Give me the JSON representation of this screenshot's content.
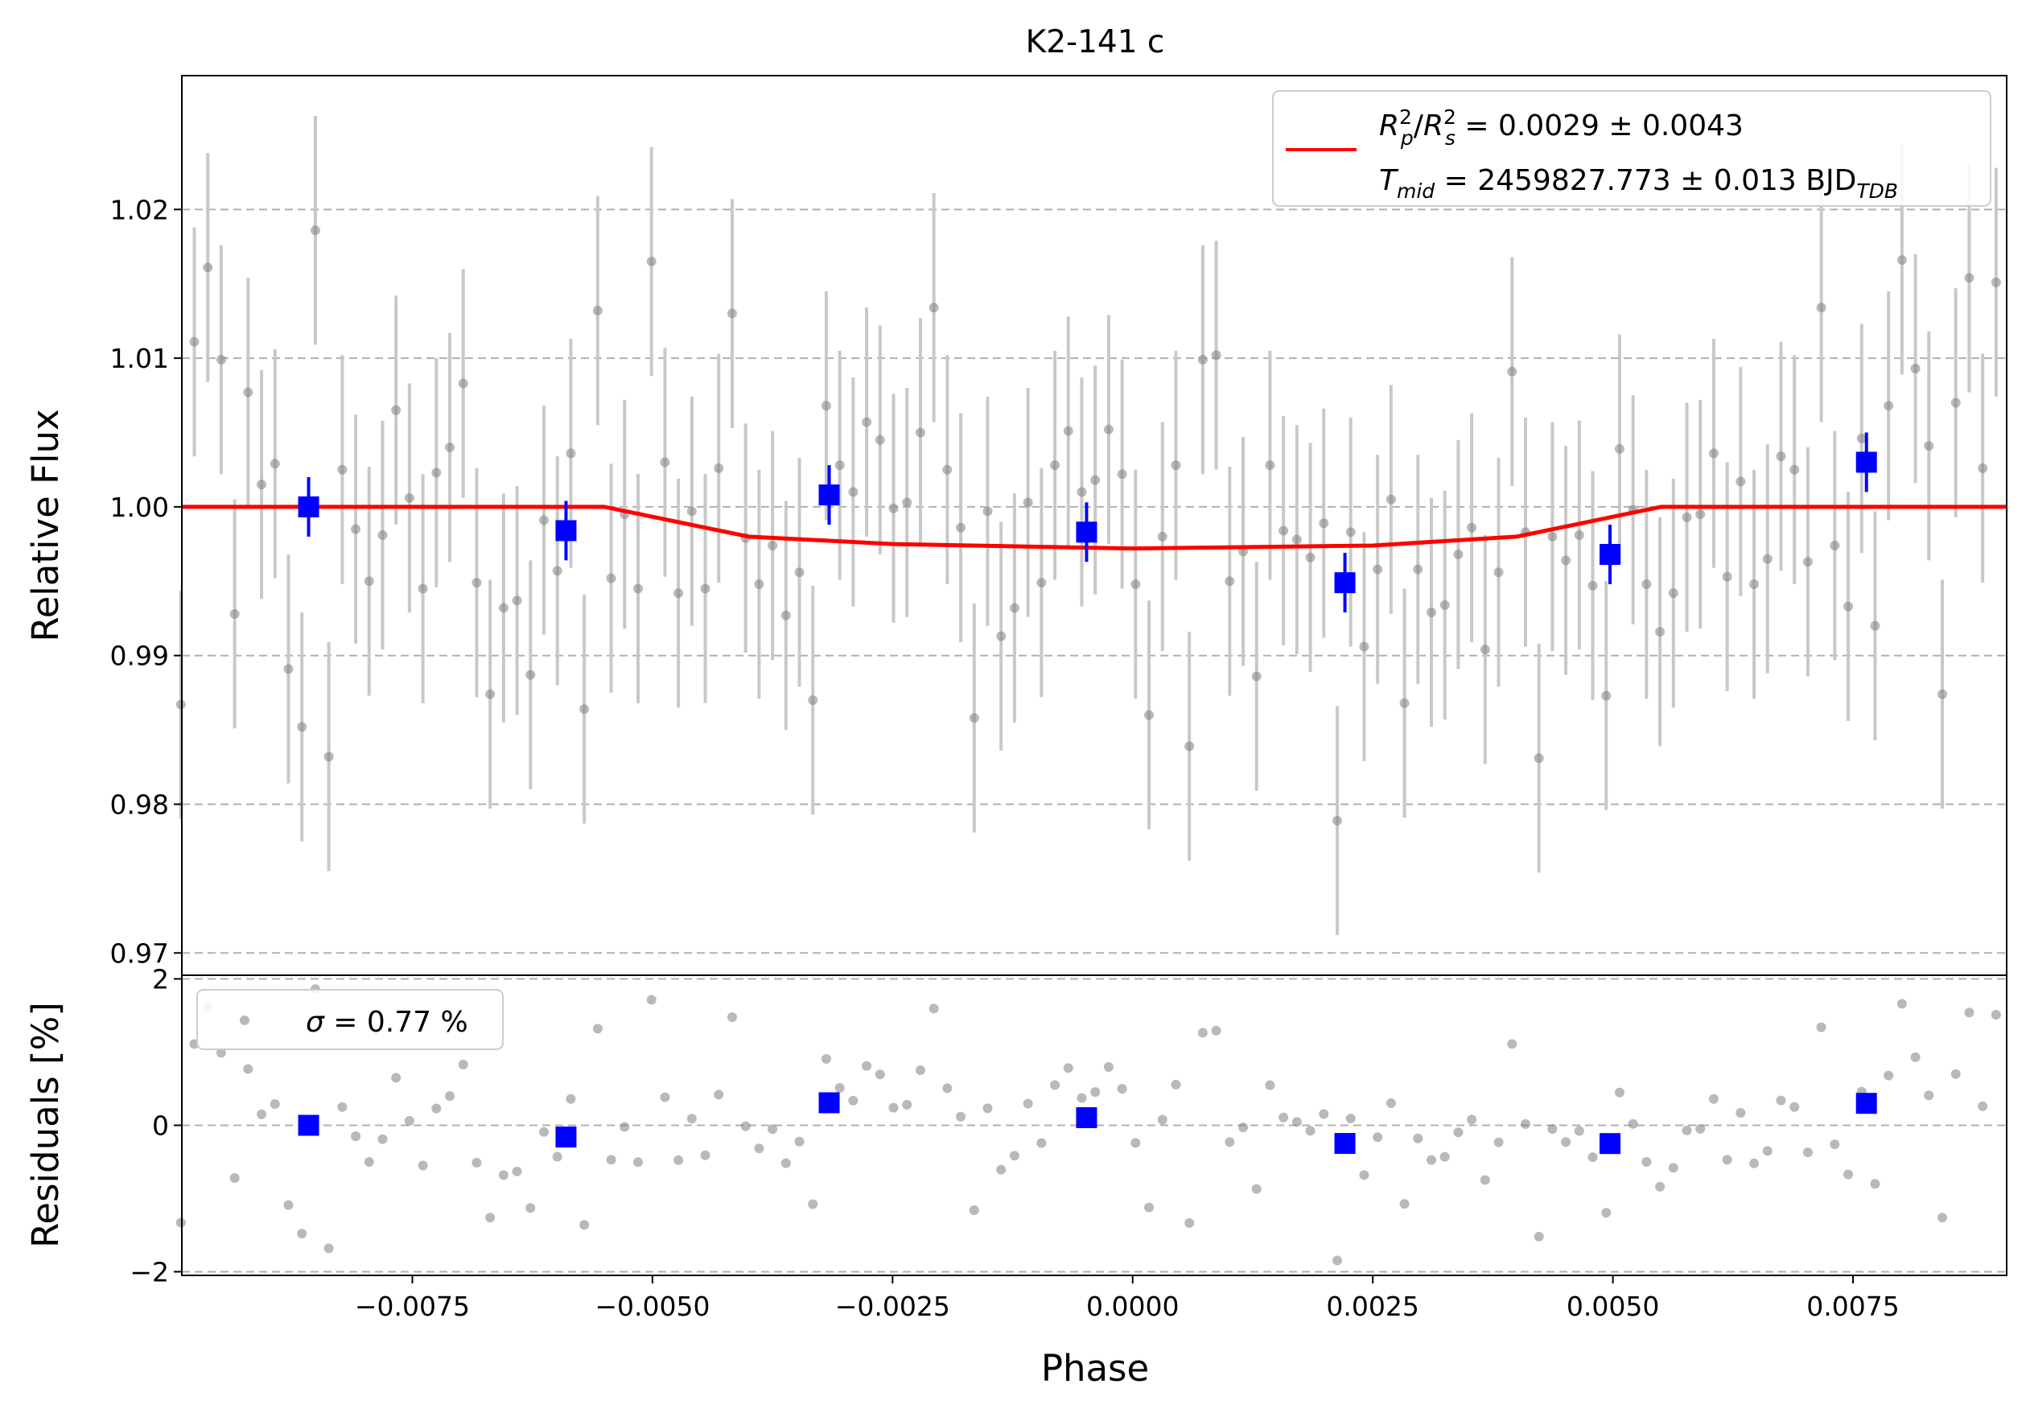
{
  "title": "K2-141 c",
  "colors": {
    "raw_points": "#808080",
    "raw_errorbars": "#c8c8c8",
    "binned": "#0000ff",
    "model": "#ff0000",
    "grid": "#b0b0b0"
  },
  "legend_main": {
    "rp_rs_symbol": "R",
    "rp_sub": "p",
    "rs_sub": "s",
    "sup2": "2",
    "slash": "/",
    "rp_rs_value": " = 0.0029 ± 0.0043",
    "tmid_symbol": "T",
    "tmid_sub": "mid",
    "tmid_value": " = 2459827.773 ± 0.013 BJD",
    "tmid_unit_sub": "TDB"
  },
  "legend_resid": {
    "sigma_symbol": "σ",
    "sigma_value": " = 0.77 %"
  },
  "chart_data": [
    {
      "type": "scatter",
      "title": "K2-141 c",
      "xlabel": "Phase",
      "ylabel": "Relative Flux",
      "xlim": [
        -0.0099,
        0.0091
      ],
      "ylim": [
        0.9685,
        1.029
      ],
      "grid": "horizontal dashed",
      "legend_position": "top-right",
      "yticks": [
        "0.97",
        "0.98",
        "0.99",
        "1.00",
        "1.01",
        "1.02"
      ],
      "ytick_values": [
        0.97,
        0.98,
        0.99,
        1.0,
        1.01,
        1.02
      ],
      "xticks": [
        "−0.0075",
        "−0.0050",
        "−0.0025",
        "0.0000",
        "0.0025",
        "0.0050",
        "0.0075"
      ],
      "xtick_values": [
        -0.0075,
        -0.005,
        -0.0025,
        0.0,
        0.0025,
        0.005,
        0.0075
      ],
      "raw": {
        "x": [
          -0.00991,
          -0.00977,
          -0.00963,
          -0.00949,
          -0.00935,
          -0.00921,
          -0.00907,
          -0.00893,
          -0.00879,
          -0.00865,
          -0.00851,
          -0.00837,
          -0.00823,
          -0.00809,
          -0.00795,
          -0.00781,
          -0.00767,
          -0.00753,
          -0.00739,
          -0.00725,
          -0.00711,
          -0.00697,
          -0.00683,
          -0.00669,
          -0.00655,
          -0.00641,
          -0.00627,
          -0.00613,
          -0.00599,
          -0.00585,
          -0.00571,
          -0.00557,
          -0.00543,
          -0.00529,
          -0.00515,
          -0.00501,
          -0.00487,
          -0.00473,
          -0.00459,
          -0.00445,
          -0.00431,
          -0.00417,
          -0.00403,
          -0.00389,
          -0.00375,
          -0.00361,
          -0.00347,
          -0.00333,
          -0.00319,
          -0.00305,
          -0.00291,
          -0.00277,
          -0.00263,
          -0.00249,
          -0.00235,
          -0.00221,
          -0.00207,
          -0.00193,
          -0.00179,
          -0.00165,
          -0.00151,
          -0.00137,
          -0.00123,
          -0.00109,
          -0.00095,
          -0.00081,
          -0.00067,
          -0.00053,
          -0.00039,
          -0.00025,
          -0.00011,
          3e-05,
          0.00017,
          0.00031,
          0.00045,
          0.00059,
          0.00073,
          0.00087,
          0.00101,
          0.00115,
          0.00129,
          0.00143,
          0.00157,
          0.00171,
          0.00185,
          0.00199,
          0.00213,
          0.00227,
          0.00241,
          0.00255,
          0.00269,
          0.00283,
          0.00297,
          0.00311,
          0.00325,
          0.00339,
          0.00353,
          0.00367,
          0.00381,
          0.00395,
          0.00409,
          0.00423,
          0.00437,
          0.00451,
          0.00465,
          0.00479,
          0.00493,
          0.00507,
          0.00521,
          0.00535,
          0.00549,
          0.00563,
          0.00577,
          0.00591,
          0.00605,
          0.00619,
          0.00633,
          0.00647,
          0.00661,
          0.00675,
          0.00689,
          0.00703,
          0.00717,
          0.00731,
          0.00745,
          0.00759,
          0.00773,
          0.00787,
          0.00801,
          0.00815,
          0.00829,
          0.00843,
          0.00857,
          0.00871,
          0.00885,
          0.00899
        ],
        "y": [
          0.9867,
          1.0111,
          1.0161,
          1.0099,
          0.9928,
          1.0077,
          1.0015,
          1.0029,
          0.9891,
          0.9852,
          1.0186,
          0.9832,
          1.0025,
          0.9985,
          0.995,
          0.9981,
          1.0065,
          1.0006,
          0.9945,
          1.0023,
          1.004,
          1.0083,
          0.9949,
          0.9874,
          0.9932,
          0.9937,
          0.9887,
          0.9991,
          0.9957,
          1.0036,
          0.9864,
          1.0132,
          0.9952,
          0.9995,
          0.9945,
          1.0165,
          1.003,
          0.9942,
          0.9997,
          0.9945,
          1.0026,
          1.013,
          0.9979,
          0.9948,
          0.9974,
          0.9927,
          0.9956,
          0.987,
          1.0068,
          1.0028,
          1.001,
          1.0057,
          1.0045,
          0.9999,
          1.0003,
          1.005,
          1.0134,
          1.0025,
          0.9986,
          0.9858,
          0.9997,
          0.9913,
          0.9932,
          1.0003,
          0.9949,
          1.0028,
          1.0051,
          1.001,
          1.0018,
          1.0052,
          1.0022,
          0.9948,
          0.986,
          0.998,
          1.0028,
          0.9839,
          1.0099,
          1.0102,
          0.995,
          0.997,
          0.9886,
          1.0028,
          0.9984,
          0.9978,
          0.9966,
          0.9989,
          0.9789,
          0.9983,
          0.9906,
          0.9958,
          1.0005,
          0.9868,
          0.9958,
          0.9929,
          0.9934,
          0.9968,
          0.9986,
          0.9904,
          0.9956,
          1.0091,
          0.9983,
          0.9831,
          0.998,
          0.9964,
          0.9981,
          0.9947,
          0.9873,
          1.0039,
          0.9998,
          0.9948,
          0.9916,
          0.9942,
          0.9993,
          0.9995,
          1.0036,
          0.9953,
          1.0017,
          0.9948,
          0.9965,
          1.0034,
          1.0025,
          0.9963,
          1.0134,
          0.9974,
          0.9933,
          1.0046,
          0.992,
          1.0068,
          1.0166,
          1.0093,
          1.0041,
          0.9874,
          1.007,
          1.0154,
          1.0026,
          1.0151
        ],
        "yerr": 0.0077
      },
      "binned": {
        "x": [
          -0.00858,
          -0.0059,
          -0.00316,
          -0.00048,
          0.00221,
          0.00497,
          0.00764
        ],
        "y": [
          1.0,
          0.9984,
          1.0008,
          0.9983,
          0.9949,
          0.9968,
          1.003
        ],
        "yerr": 0.002
      },
      "model": {
        "x": [
          -0.0099,
          -0.0055,
          -0.004,
          -0.0025,
          0.0,
          0.0025,
          0.004,
          0.0055,
          0.0091
        ],
        "y": [
          1.0,
          1.0,
          0.998,
          0.9975,
          0.9972,
          0.9974,
          0.998,
          1.0,
          1.0
        ]
      }
    },
    {
      "type": "scatter",
      "xlabel": "Phase",
      "ylabel": "Residuals [%]",
      "xlim": [
        -0.0099,
        0.0091
      ],
      "ylim": [
        -2.05,
        2.05
      ],
      "grid": "horizontal dashed",
      "legend_position": "top-left",
      "yticks": [
        "−2",
        "0",
        "2"
      ],
      "ytick_values": [
        -2,
        0,
        2
      ],
      "raw_y_offset_percent": 0.0
    }
  ]
}
